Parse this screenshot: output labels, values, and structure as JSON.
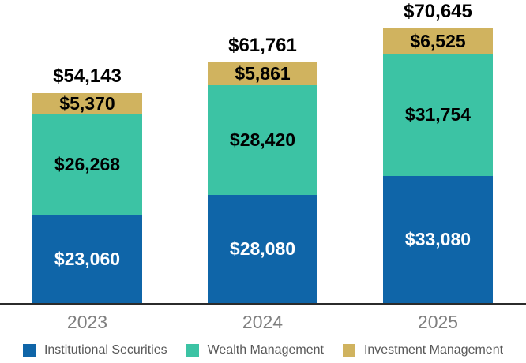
{
  "chart_data": {
    "type": "bar",
    "stacked": true,
    "title": "",
    "xlabel": "",
    "ylabel": "",
    "grid": false,
    "legend_position": "bottom",
    "categories": [
      "2023",
      "2024",
      "2025"
    ],
    "series": [
      {
        "name": "Institutional Securities",
        "color": "#0F65A8",
        "label_color": "#FFFFFF",
        "values": [
          23060,
          28080,
          33080
        ],
        "labels": [
          "$23,060",
          "$28,080",
          "$33,080"
        ]
      },
      {
        "name": "Wealth Management",
        "color": "#3CC3A4",
        "label_color": "#000000",
        "values": [
          26268,
          28420,
          31754
        ],
        "labels": [
          "$26,268",
          "$28,420",
          "$31,754"
        ]
      },
      {
        "name": "Investment Management",
        "color": "#D0B35F",
        "label_color": "#000000",
        "values": [
          5370,
          5861,
          6525
        ],
        "labels": [
          "$5,370",
          "$5,861",
          "$6,525"
        ]
      }
    ],
    "totals": [
      54143,
      61761,
      70645
    ],
    "total_labels": [
      "$54,143",
      "$61,761",
      "$70,645"
    ]
  },
  "colors": {
    "background": "#FFFFFF",
    "axis_line": "#2B2B2B",
    "total_label_text": "#000000",
    "year_label_text": "#7F7F7F",
    "legend_text": "#595959"
  }
}
